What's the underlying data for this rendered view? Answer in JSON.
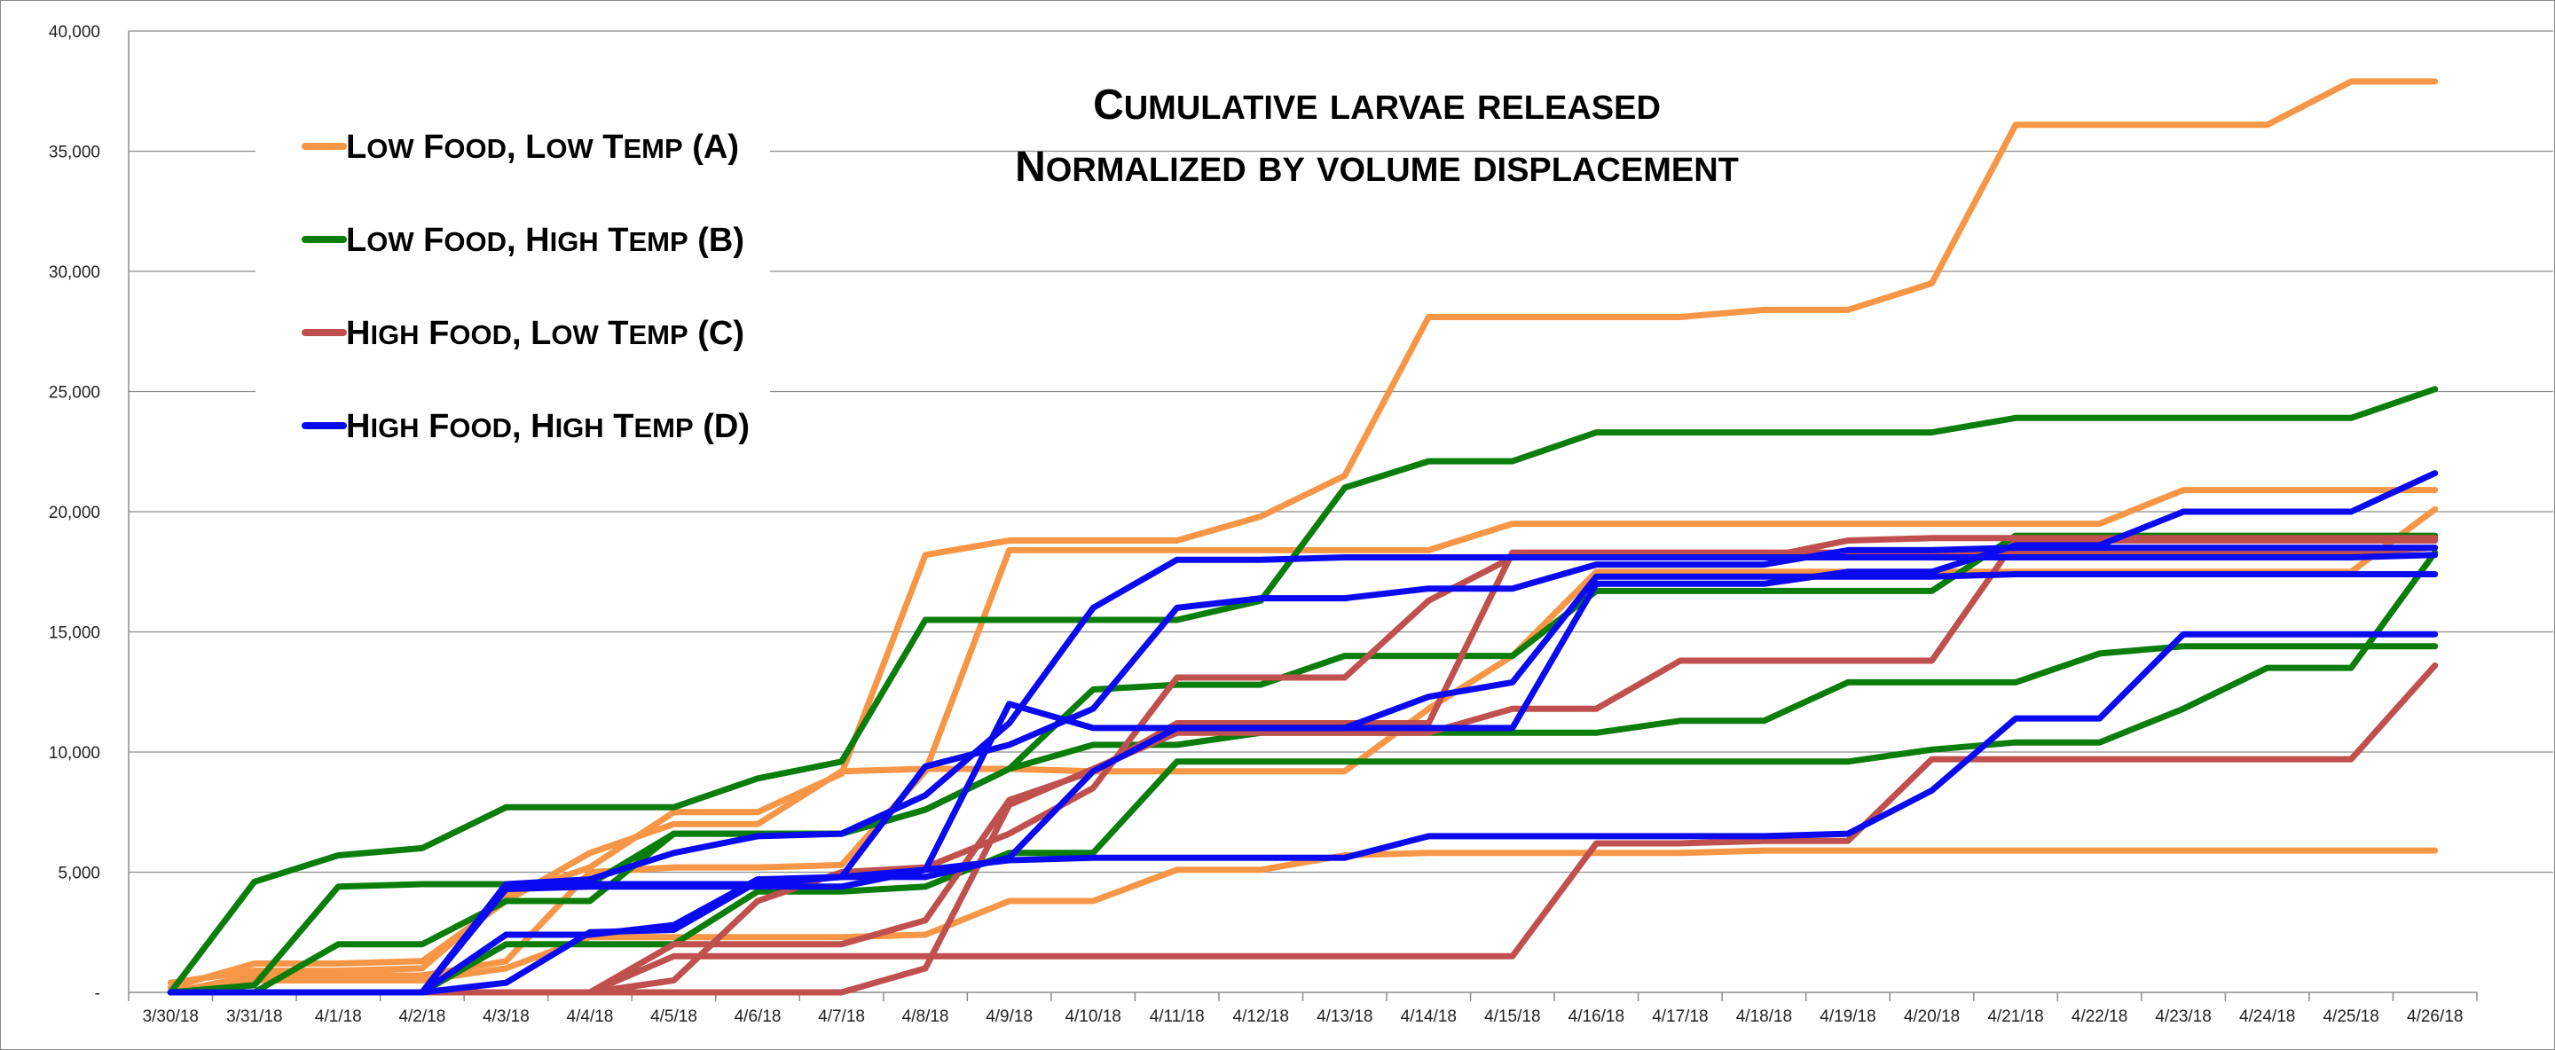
{
  "chart_data": {
    "type": "line",
    "title": [
      "Cumulative larvae released",
      "Normalized by volume displacement"
    ],
    "xlabel": "",
    "ylabel": "",
    "ylim": [
      0,
      40000
    ],
    "yticks": [
      0,
      5000,
      10000,
      15000,
      20000,
      25000,
      30000,
      35000,
      40000
    ],
    "ytick_labels": [
      "-",
      "5,000",
      "10,000",
      "15,000",
      "20,000",
      "25,000",
      "30,000",
      "35,000",
      "40,000"
    ],
    "grid": true,
    "legend_position": "top-left",
    "categories": [
      "3/30/18",
      "3/31/18",
      "4/1/18",
      "4/2/18",
      "4/3/18",
      "4/4/18",
      "4/5/18",
      "4/6/18",
      "4/7/18",
      "4/8/18",
      "4/9/18",
      "4/10/18",
      "4/11/18",
      "4/12/18",
      "4/13/18",
      "4/14/18",
      "4/15/18",
      "4/16/18",
      "4/17/18",
      "4/18/18",
      "4/19/18",
      "4/20/18",
      "4/21/18",
      "4/22/18",
      "4/23/18",
      "4/24/18",
      "4/25/18",
      "4/26/18"
    ],
    "groups": [
      {
        "key": "A",
        "label": "Low Food, Low Temp (A)",
        "color": "#F79646"
      },
      {
        "key": "B",
        "label": "Low Food, High Temp (B)",
        "color": "#0B7D0B"
      },
      {
        "key": "C",
        "label": "High Food, Low Temp (C)",
        "color": "#C0504D"
      },
      {
        "key": "D",
        "label": "High Food, High Temp (D)",
        "color": "#0A0AF0"
      }
    ],
    "series": [
      {
        "group": "A",
        "values": [
          200,
          1200,
          1200,
          1300,
          3800,
          5800,
          7000,
          7000,
          9200,
          9300,
          9300,
          9200,
          9200,
          9200,
          9200,
          11800,
          14000,
          17500,
          17500,
          17500,
          17500,
          17500,
          17500,
          17500,
          17500,
          17500,
          17500,
          20100
        ]
      },
      {
        "group": "A",
        "values": [
          400,
          900,
          900,
          1000,
          4000,
          5200,
          7500,
          7500,
          9100,
          18200,
          18800,
          18800,
          18800,
          19800,
          21500,
          28100,
          28100,
          28100,
          28100,
          28400,
          28400,
          29500,
          36100,
          36100,
          36100,
          36100,
          37900,
          37900
        ]
      },
      {
        "group": "A",
        "values": [
          0,
          700,
          700,
          700,
          1300,
          5000,
          5200,
          5200,
          5300,
          9200,
          18400,
          18400,
          18400,
          18400,
          18400,
          18400,
          19500,
          19500,
          19500,
          19500,
          19500,
          19500,
          19500,
          19500,
          20900,
          20900,
          20900,
          20900
        ]
      },
      {
        "group": "A",
        "values": [
          0,
          500,
          500,
          500,
          1000,
          2300,
          2300,
          2300,
          2300,
          2400,
          3800,
          3800,
          5100,
          5100,
          5700,
          5800,
          5800,
          5800,
          5800,
          5900,
          5900,
          5900,
          5900,
          5900,
          5900,
          5900,
          5900,
          5900
        ]
      },
      {
        "group": "B",
        "values": [
          0,
          4600,
          5700,
          6000,
          7700,
          7700,
          7700,
          8900,
          9600,
          15500,
          15500,
          15500,
          15500,
          16300,
          21000,
          22100,
          22100,
          23300,
          23300,
          23300,
          23300,
          23300,
          23900,
          23900,
          23900,
          23900,
          23900,
          25100
        ]
      },
      {
        "group": "B",
        "values": [
          0,
          300,
          4400,
          4500,
          4500,
          4500,
          6600,
          6600,
          6600,
          7600,
          9300,
          10300,
          10300,
          10800,
          10800,
          10800,
          10800,
          10800,
          11300,
          11300,
          12900,
          12900,
          12900,
          14100,
          14400,
          14400,
          14400,
          14400
        ]
      },
      {
        "group": "B",
        "values": [
          0,
          0,
          2000,
          2000,
          3800,
          3800,
          6600,
          6600,
          6600,
          7600,
          9300,
          12600,
          12800,
          12800,
          14000,
          14000,
          14000,
          16700,
          16700,
          16700,
          16700,
          16700,
          19000,
          19000,
          19000,
          19000,
          19000,
          19000
        ]
      },
      {
        "group": "B",
        "values": [
          0,
          0,
          0,
          0,
          2000,
          2000,
          2000,
          4200,
          4200,
          4400,
          5800,
          5800,
          9600,
          9600,
          9600,
          9600,
          9600,
          9600,
          9600,
          9600,
          9600,
          10100,
          10400,
          10400,
          11800,
          13500,
          13500,
          18300
        ]
      },
      {
        "group": "C",
        "values": [
          0,
          0,
          0,
          0,
          0,
          0,
          1500,
          1500,
          1500,
          1500,
          1500,
          1500,
          1500,
          1500,
          1500,
          1500,
          1500,
          6200,
          6200,
          6300,
          6300,
          9700,
          9700,
          9700,
          9700,
          9700,
          9700,
          13600
        ]
      },
      {
        "group": "C",
        "values": [
          0,
          0,
          0,
          0,
          0,
          0,
          0,
          0,
          0,
          1000,
          7800,
          9300,
          10800,
          10800,
          10800,
          10800,
          11800,
          11800,
          13800,
          13800,
          13800,
          13800,
          18800,
          18800,
          18800,
          18800,
          18800,
          18800
        ]
      },
      {
        "group": "C",
        "values": [
          0,
          0,
          0,
          0,
          0,
          0,
          500,
          3800,
          5000,
          5200,
          6600,
          8500,
          13100,
          13100,
          13100,
          16300,
          18100,
          18100,
          18100,
          18100,
          18800,
          18900,
          18900,
          18900,
          18900,
          18900,
          18900,
          18900
        ]
      },
      {
        "group": "C",
        "values": [
          0,
          0,
          0,
          0,
          0,
          0,
          2000,
          2000,
          2000,
          3000,
          8000,
          9200,
          11200,
          11200,
          11200,
          11200,
          18300,
          18300,
          18300,
          18300,
          18300,
          18300,
          18300,
          18300,
          18300,
          18300,
          18300,
          18500
        ]
      },
      {
        "group": "D",
        "values": [
          0,
          0,
          0,
          0,
          4500,
          4700,
          5800,
          6500,
          6600,
          8200,
          11200,
          16000,
          18000,
          18000,
          18100,
          18100,
          18100,
          18100,
          18100,
          18100,
          18100,
          18100,
          18100,
          18100,
          18100,
          18100,
          18100,
          18200
        ]
      },
      {
        "group": "D",
        "values": [
          0,
          0,
          0,
          0,
          2400,
          2400,
          2800,
          4700,
          4800,
          9400,
          10300,
          11800,
          16000,
          16400,
          16400,
          16800,
          16800,
          17800,
          17800,
          17800,
          18400,
          18400,
          18500,
          18500,
          18500,
          18500,
          18500,
          18500
        ]
      },
      {
        "group": "D",
        "values": [
          0,
          0,
          0,
          0,
          4300,
          4400,
          4400,
          4400,
          4400,
          5100,
          12000,
          11000,
          11000,
          11000,
          11000,
          12300,
          12900,
          17300,
          17300,
          17300,
          17300,
          17300,
          17400,
          17400,
          17400,
          17400,
          17400,
          17400
        ]
      },
      {
        "group": "D",
        "values": [
          0,
          0,
          0,
          0,
          400,
          2500,
          2600,
          4600,
          4800,
          5100,
          5500,
          5600,
          5600,
          5600,
          5600,
          6500,
          6500,
          6500,
          6500,
          6500,
          6600,
          8400,
          11400,
          11400,
          14900,
          14900,
          14900,
          14900
        ]
      },
      {
        "group": "D",
        "values": [
          0,
          0,
          0,
          0,
          4500,
          4500,
          4500,
          4500,
          4800,
          4800,
          5600,
          9200,
          11000,
          11000,
          11000,
          11000,
          11000,
          17000,
          17000,
          17000,
          17500,
          17500,
          18600,
          18600,
          20000,
          20000,
          20000,
          21600
        ]
      }
    ]
  }
}
